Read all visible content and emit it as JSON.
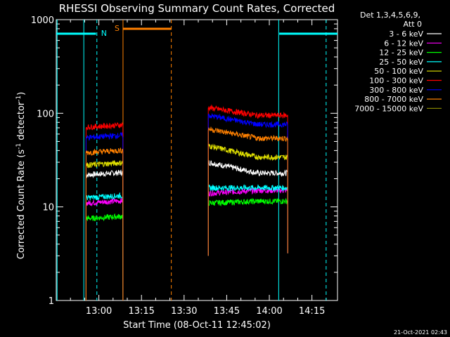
{
  "chart_data": {
    "type": "line",
    "title": "RHESSI Observing Summary Count Rates, Corrected",
    "xlabel": "Start Time (08-Oct-11 12:45:02)",
    "ylabel_main": "Corrected Count Rate (s",
    "ylabel_sup1": "-1",
    "ylabel_mid": " detector",
    "ylabel_sup2": "-1",
    "ylabel_end": ")",
    "yscale": "log",
    "ylim": [
      1,
      1000
    ],
    "xlim": [
      "12:45",
      "14:24"
    ],
    "xlim_minutes": [
      45,
      144
    ],
    "y_ticks": [
      "1",
      "10",
      "100",
      "1000"
    ],
    "x_ticks": [
      {
        "label": "13:00",
        "min": 60
      },
      {
        "label": "13:15",
        "min": 75
      },
      {
        "label": "13:30",
        "min": 90
      },
      {
        "label": "13:45",
        "min": 105
      },
      {
        "label": "14:00",
        "min": 120
      },
      {
        "label": "14:15",
        "min": 135
      }
    ],
    "legend": {
      "header1": "Det 1,3,4,5,6,9,",
      "header2": "Att 0",
      "position": "right"
    },
    "series": [
      {
        "name": "3 - 6 keV",
        "color": "#ffffff",
        "seg1": 22,
        "seg2start": 30,
        "seg2end": 23
      },
      {
        "name": "6 - 12 keV",
        "color": "#ff00ff",
        "seg1": 11,
        "seg2start": 14,
        "seg2end": 15
      },
      {
        "name": "12 - 25 keV",
        "color": "#00ff00",
        "seg1": 7.5,
        "seg2start": 11,
        "seg2end": 11.5
      },
      {
        "name": "25 - 50 keV",
        "color": "#00ffff",
        "seg1": 12.5,
        "seg2start": 16,
        "seg2end": 16
      },
      {
        "name": "50 - 100 keV",
        "color": "#e0e000",
        "seg1": 28,
        "seg2start": 45,
        "seg2end": 34
      },
      {
        "name": "100 - 300 keV",
        "color": "#ff0000",
        "seg1": 71,
        "seg2start": 115,
        "seg2end": 95
      },
      {
        "name": "300 - 800 keV",
        "color": "#0000ff",
        "seg1": 55,
        "seg2start": 95,
        "seg2end": 76
      },
      {
        "name": "800 - 7000 keV",
        "color": "#ff8000",
        "seg1": 38,
        "seg2start": 68,
        "seg2end": 54
      },
      {
        "name": "7000 - 15000 keV",
        "color": "#808000",
        "seg1": null,
        "seg2start": null,
        "seg2end": null
      }
    ],
    "segments_minutes": [
      [
        55.5,
        68.5
      ],
      [
        98.5,
        126.5
      ]
    ],
    "annotations": {
      "night_label": "N",
      "saa_label": "S",
      "night_intervals": [
        [
          45,
          59
        ]
      ],
      "night_interval_end": [
        [
          123.5,
          144
        ]
      ],
      "saa_interval": [
        [
          68.5,
          85.5
        ]
      ],
      "cyan_lines_solid": [
        45.3,
        54.7,
        123.3
      ],
      "cyan_lines_dashed": [
        59.3,
        140
      ],
      "orange_lines_solid": [
        68.5
      ],
      "orange_lines_dashed": [
        85.5
      ]
    }
  },
  "footer": {
    "timestamp": "21-Oct-2021 02:43"
  }
}
